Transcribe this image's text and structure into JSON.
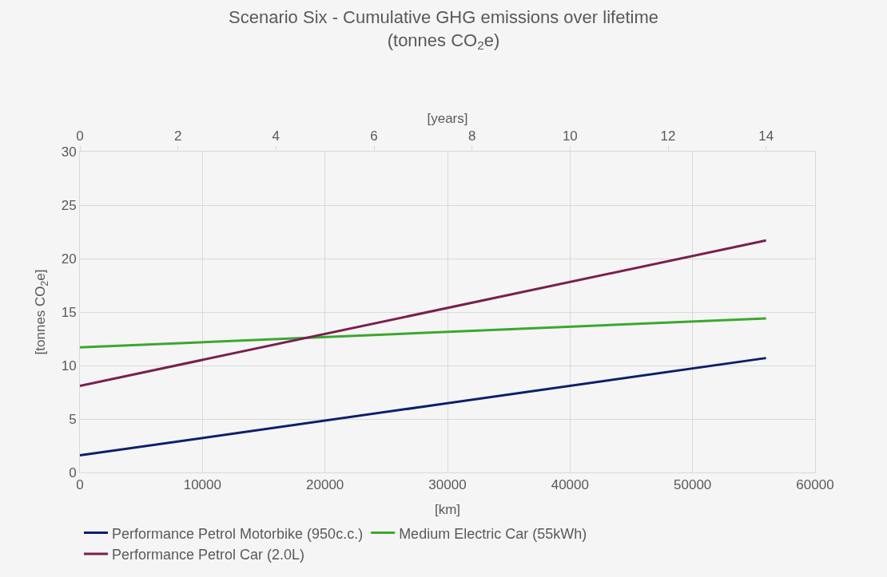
{
  "chart_data": {
    "type": "line",
    "title": "Scenario Six - Cumulative GHG emissions over lifetime\n(tonnes CO$_{2}$e)",
    "xlabel": "[km]",
    "ylabel": "[tonnes CO$_{2}$e]",
    "x2label": "[years]",
    "x": [
      0,
      56000
    ],
    "series": [
      {
        "name": "Performance Petrol Motorbike (950c.c.)",
        "color": "#0d1f6b",
        "values": [
          1.6,
          10.7
        ]
      },
      {
        "name": "Medium Electric Car (55kWh)",
        "color": "#3aa82e",
        "values": [
          11.7,
          14.4
        ]
      },
      {
        "name": "Performance Petrol Car (2.0L)",
        "color": "#7a1f50",
        "values": [
          8.1,
          21.7
        ]
      }
    ],
    "xlim": [
      0,
      60000
    ],
    "xticks": [
      0,
      10000,
      20000,
      30000,
      40000,
      50000,
      60000
    ],
    "ylim": [
      0,
      30
    ],
    "yticks": [
      0,
      5,
      10,
      15,
      20,
      25,
      30
    ],
    "x2lim": [
      0,
      15
    ],
    "x2ticks": [
      0,
      2,
      4,
      6,
      8,
      10,
      12,
      14
    ],
    "grid": true,
    "legend": "bottom",
    "line_style": "solid",
    "marker": "none"
  }
}
